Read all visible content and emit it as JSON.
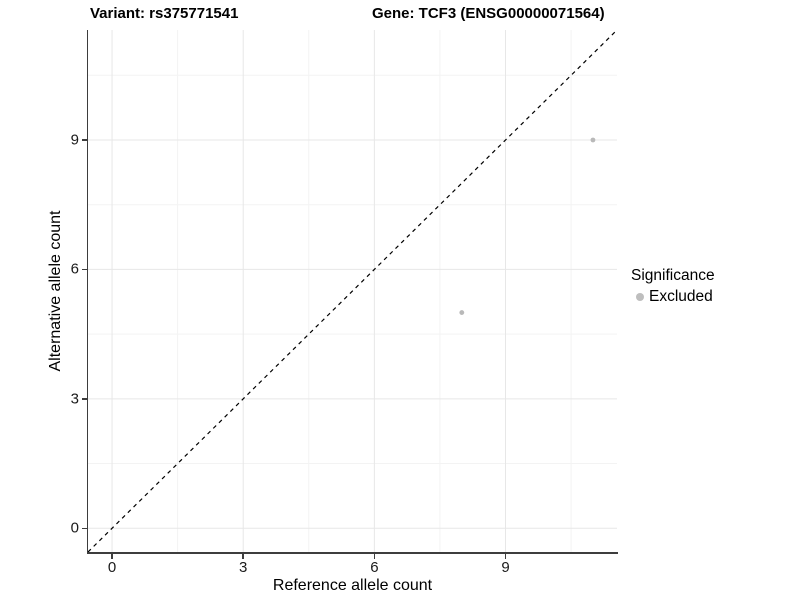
{
  "header": {
    "title_left": "Variant: rs375771541",
    "title_right": "Gene: TCF3 (ENSG00000071564)"
  },
  "legend": {
    "title": "Significance",
    "items": [
      {
        "label": "Excluded",
        "color": "#BEBEBE"
      }
    ]
  },
  "colors": {
    "background": "#FFFFFF",
    "grid_major": "#E7E7E7",
    "grid_minor": "#F3F3F3",
    "axis": "#3D3D3D",
    "point": "#B9B9B9",
    "reference_line": "#000000",
    "text": "#000000"
  },
  "chart_data": {
    "type": "scatter",
    "title": "Variant: rs375771541    Gene: TCF3 (ENSG00000071564)",
    "xlabel": "Reference allele count",
    "ylabel": "Alternative allele count",
    "xlim": [
      -0.55,
      11.55
    ],
    "ylim": [
      -0.55,
      11.55
    ],
    "xticks": [
      0,
      3,
      6,
      9
    ],
    "yticks": [
      0,
      3,
      6,
      9
    ],
    "x_minor_ticks": [
      1.5,
      4.5,
      7.5,
      10.5
    ],
    "y_minor_ticks": [
      1.5,
      4.5,
      7.5,
      10.5
    ],
    "grid": true,
    "legend_position": "right",
    "series": [
      {
        "name": "Excluded",
        "color": "#B9B9B9",
        "points": [
          {
            "x": 8,
            "y": 5
          },
          {
            "x": 11,
            "y": 9
          }
        ]
      }
    ],
    "reference_line": {
      "kind": "identity",
      "slope": 1,
      "intercept": 0,
      "style": "dashed",
      "color": "#000000"
    }
  }
}
